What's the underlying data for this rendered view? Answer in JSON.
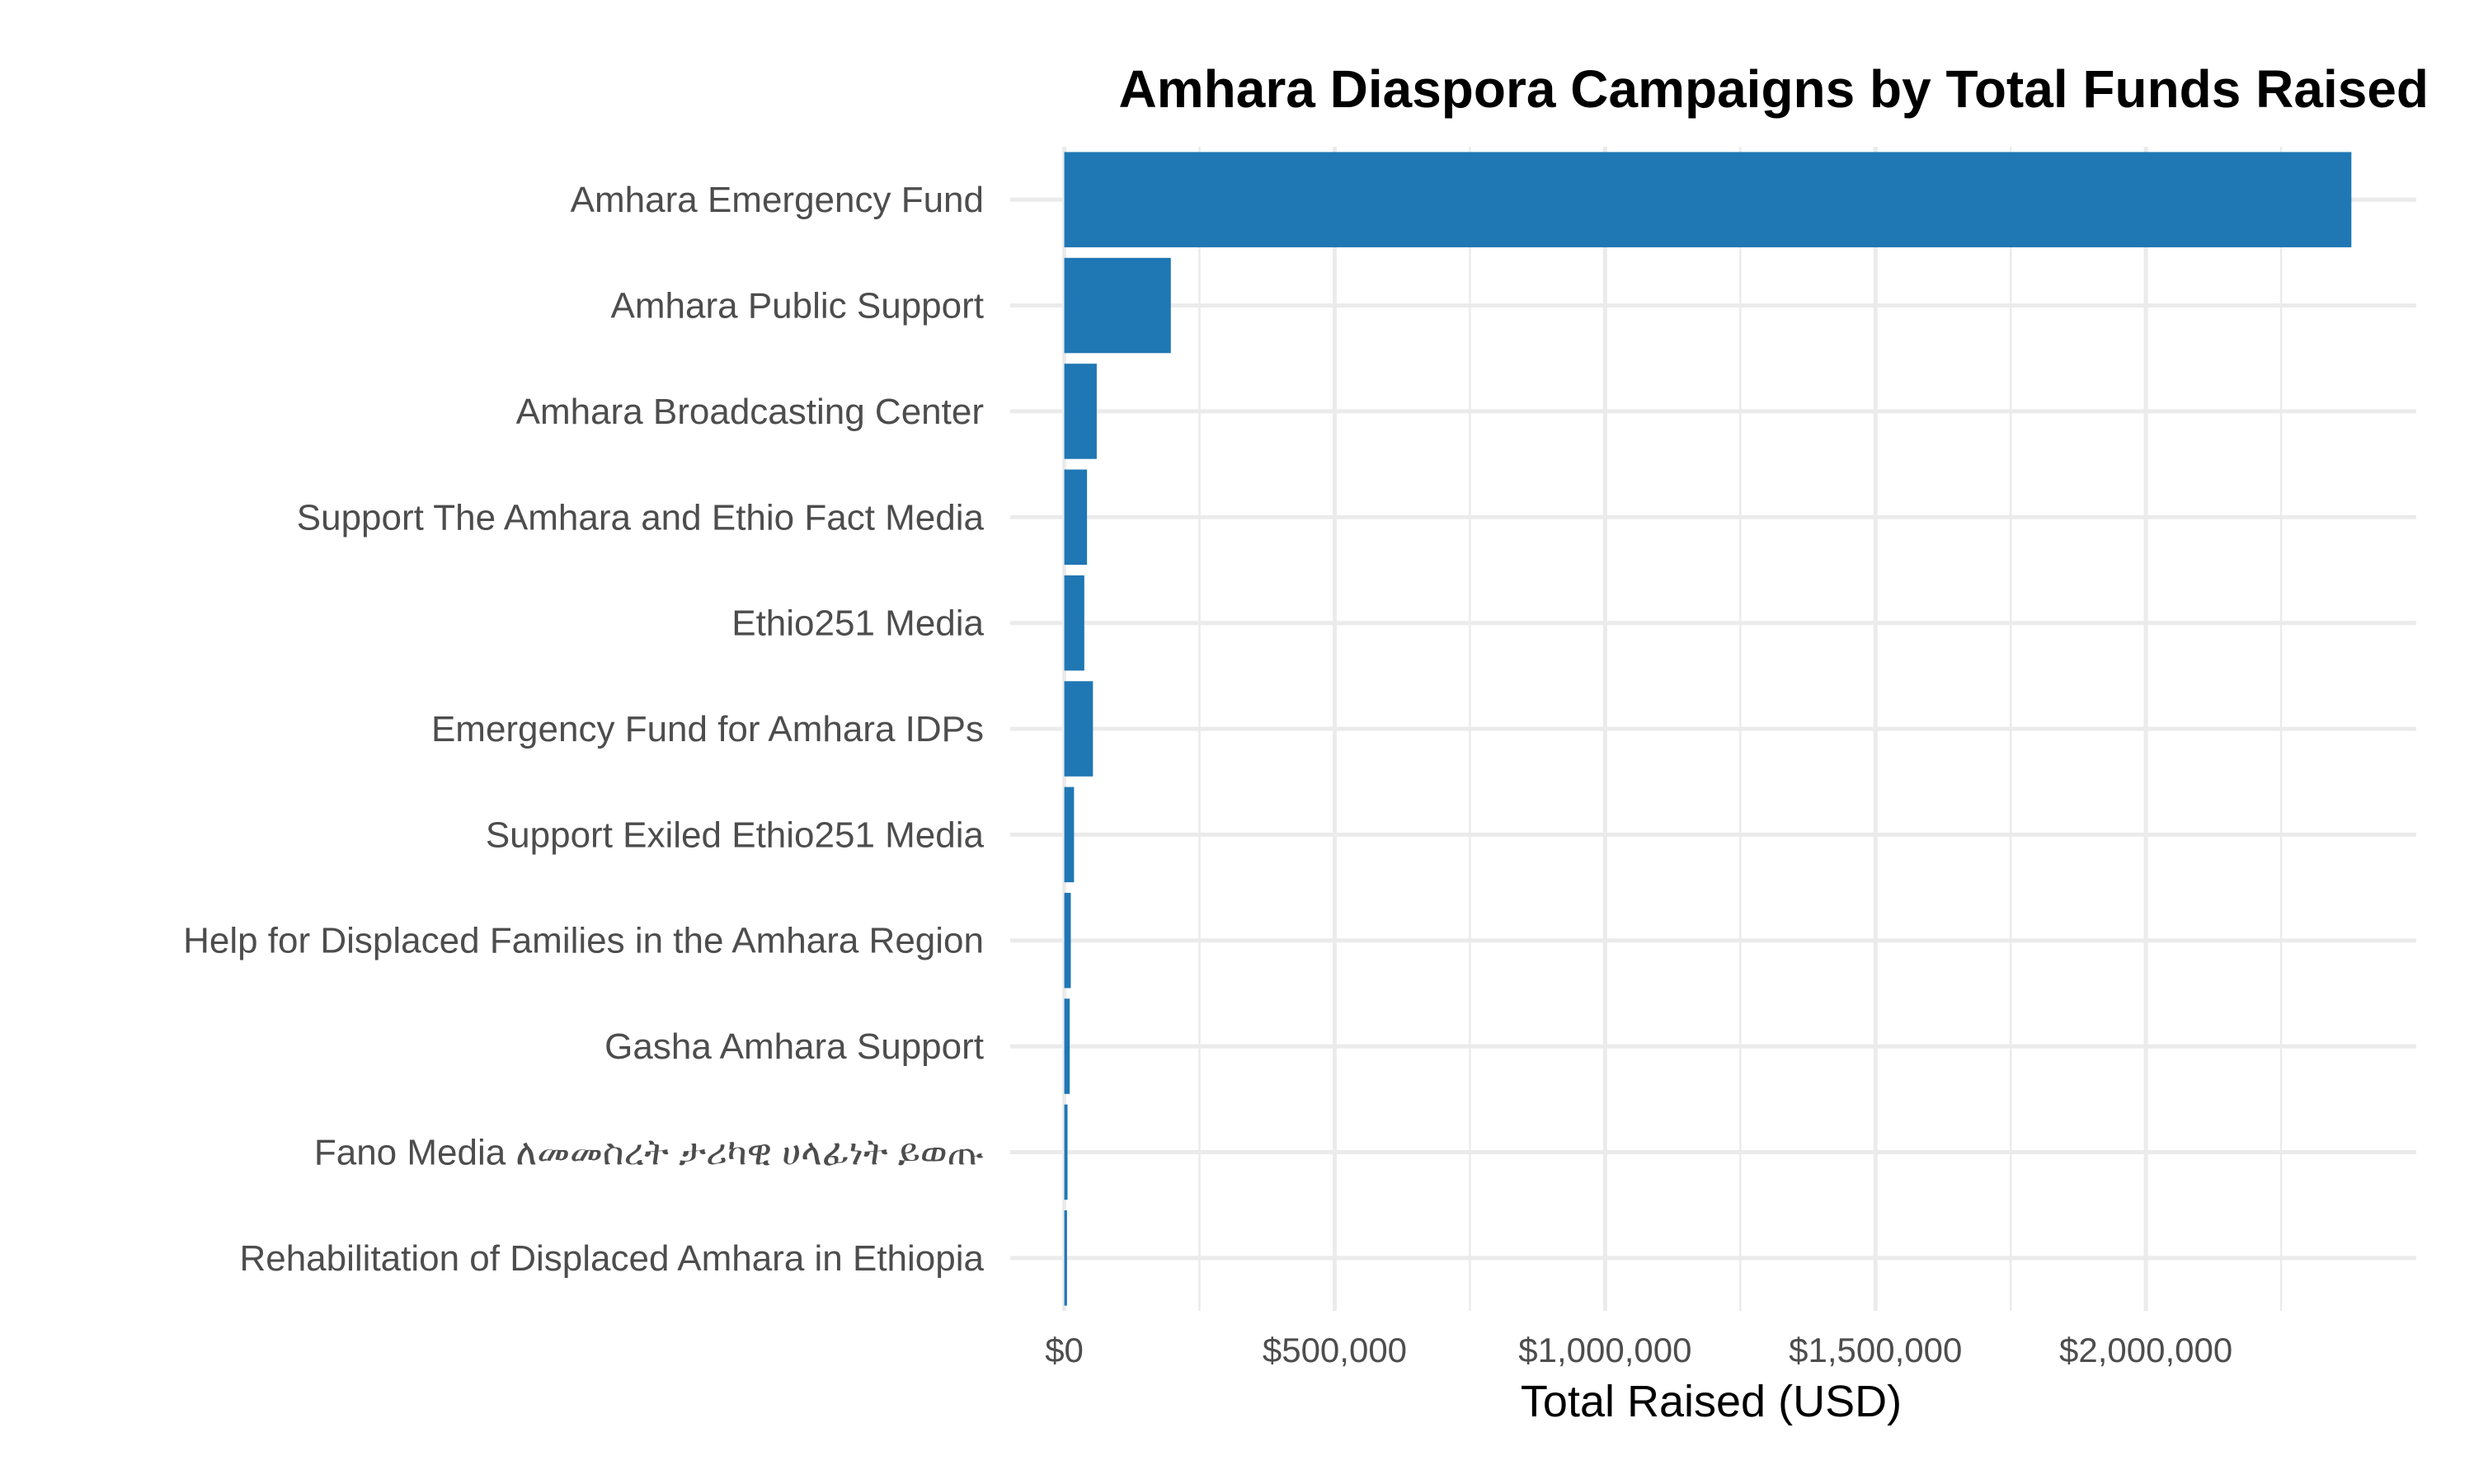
{
  "chart_data": {
    "type": "bar",
    "orientation": "horizontal",
    "title": "Amhara Diaspora Campaigns by Total Funds Raised",
    "xlabel": "Total Raised (USD)",
    "ylabel": "",
    "xlim": [
      0,
      2500000
    ],
    "x_ticks": [
      0,
      500000,
      1000000,
      1500000,
      2000000
    ],
    "x_tick_labels": [
      "$0",
      "$500,000",
      "$1,000,000",
      "$1,500,000",
      "$2,000,000"
    ],
    "grid": true,
    "bar_color": "#1f77b4",
    "categories": [
      "Amhara Emergency Fund",
      "Amhara Public Support",
      "Amhara Broadcasting Center",
      "Support The Amhara and Ethio Fact Media",
      "Ethio251 Media",
      "Emergency Fund for Amhara IDPs",
      "Support Exiled Ethio251 Media",
      "Help for Displaced Families in the Amhara Region",
      "Gasha Amhara Support",
      "Fano Media ለመመስረት ታሪካዊ ሀላፊነት ይወጡ",
      "Rehabilitation of Displaced Amhara in Ethiopia"
    ],
    "values": [
      2380000,
      197000,
      60000,
      42000,
      37000,
      53000,
      18000,
      12000,
      10000,
      6000,
      5000
    ]
  }
}
